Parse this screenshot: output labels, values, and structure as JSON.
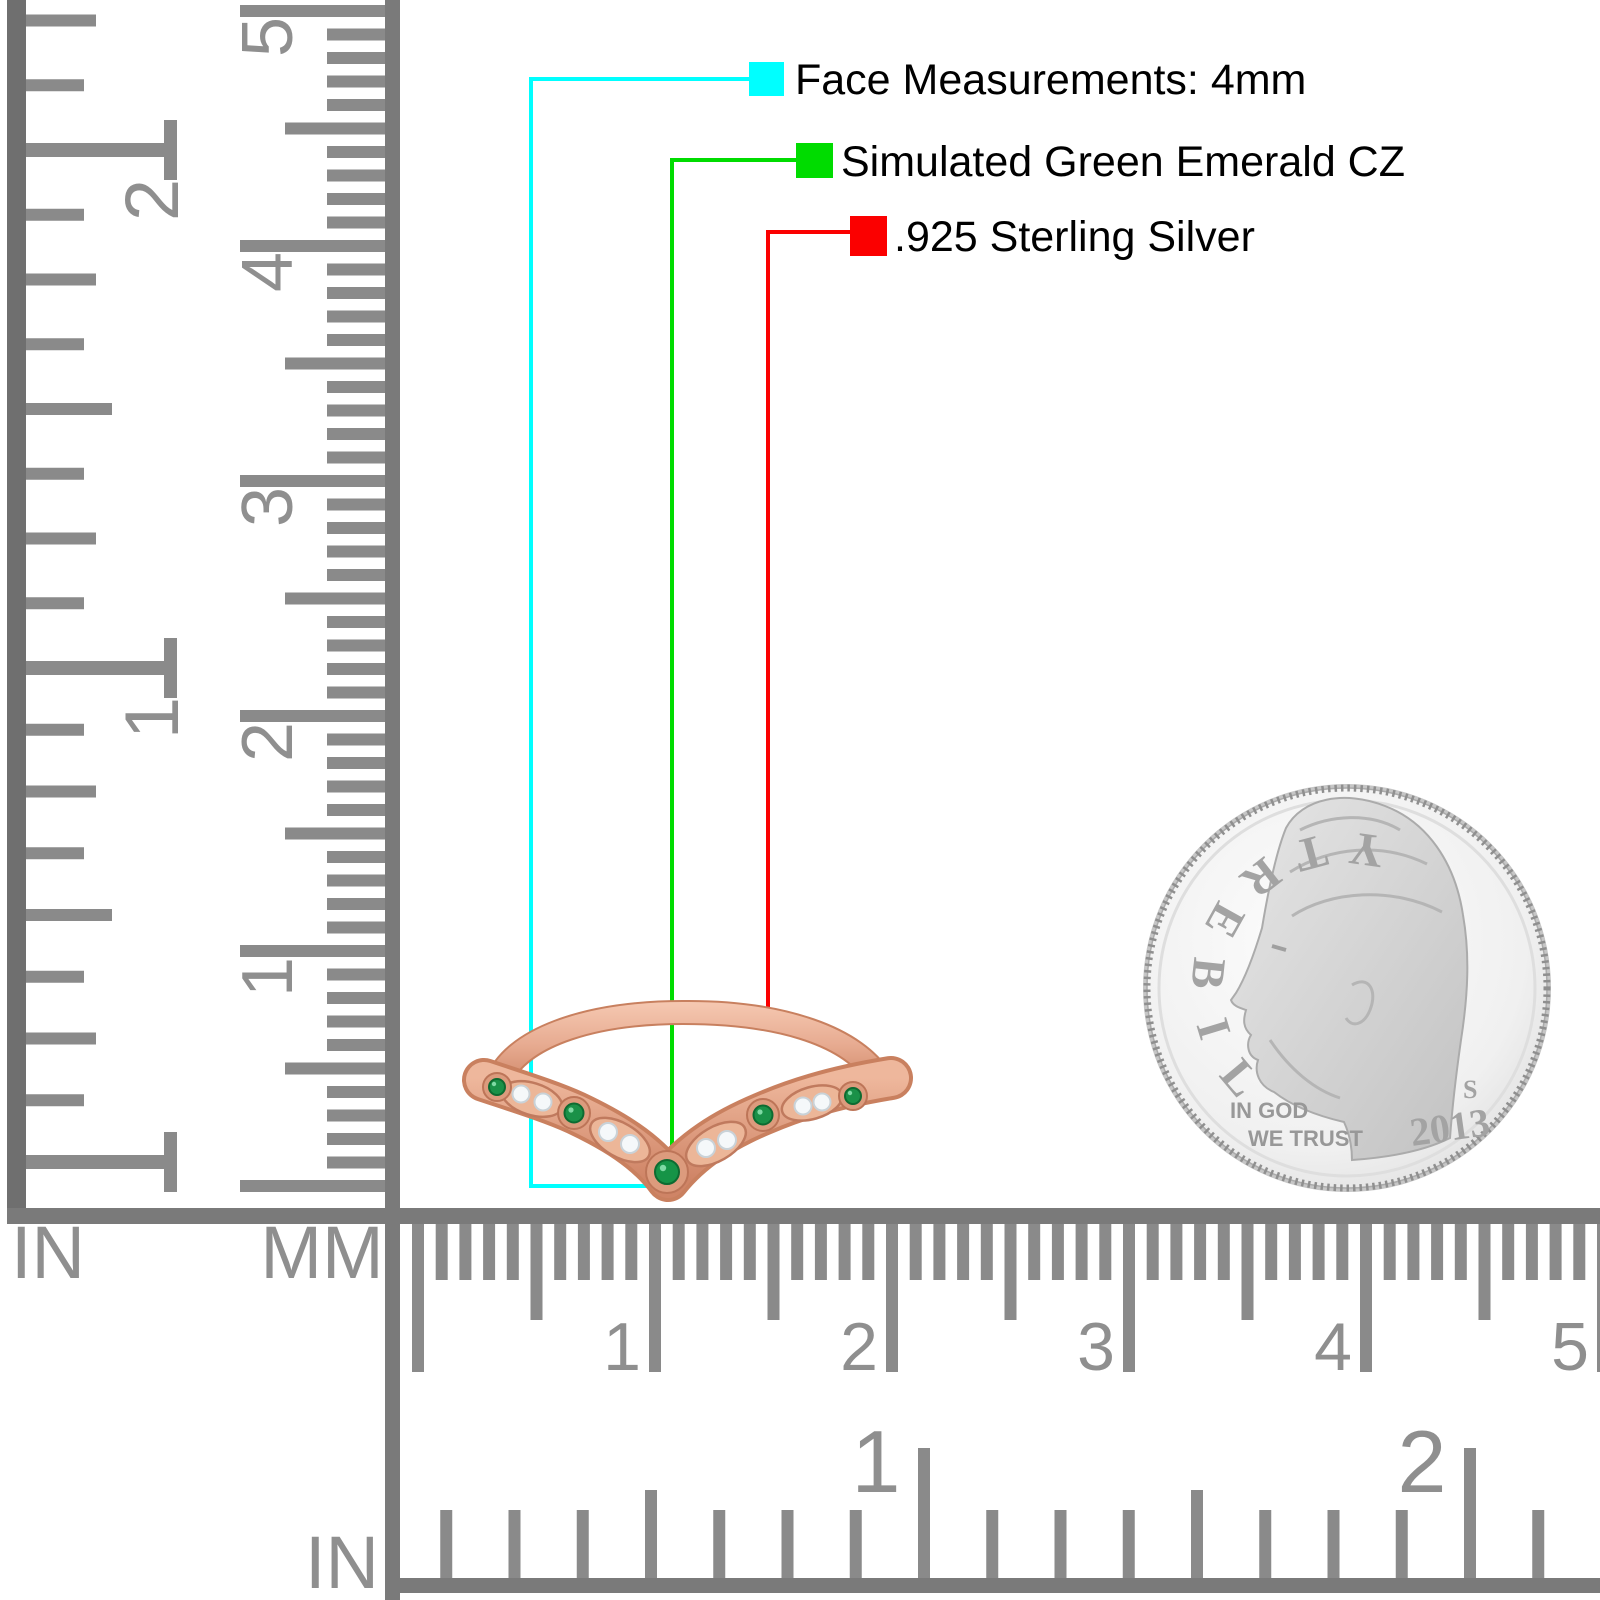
{
  "callouts": {
    "face": {
      "label": "Face Measurements: 4mm",
      "swatch_color": "#00ffff"
    },
    "stone": {
      "label": "Simulated Green Emerald CZ",
      "swatch_color": "#00dc00"
    },
    "metal": {
      "label": ".925 Sterling Silver",
      "swatch_color": "#fb0000"
    }
  },
  "rulers": {
    "left_inch": {
      "unit": "IN",
      "numbers": [
        "1",
        "2"
      ]
    },
    "left_mm": {
      "unit": "MM",
      "numbers": [
        "1",
        "2",
        "3",
        "4",
        "5"
      ]
    },
    "bottom_mm": {
      "numbers": [
        "1",
        "2",
        "3",
        "4",
        "5"
      ]
    },
    "bottom_inch": {
      "unit": "IN",
      "numbers": [
        "1",
        "2"
      ]
    }
  },
  "coin": {
    "legend": "LIBERTY",
    "motto_line1": "IN GOD",
    "motto_line2": "WE TRUST",
    "mint_mark": "S",
    "year": "2013"
  },
  "ring": {
    "band_color": "#e3a78e",
    "stone_green": "#1a9148",
    "stone_white": "#f5f8fa"
  }
}
